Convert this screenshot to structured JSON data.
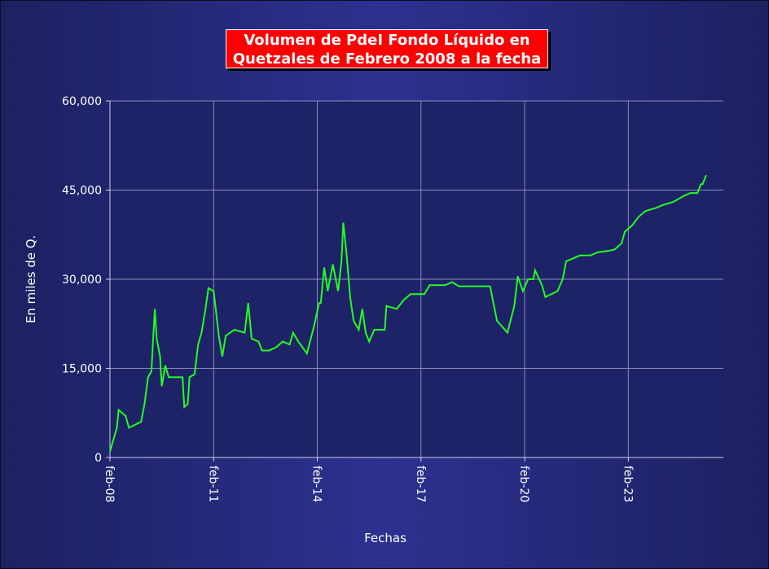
{
  "chart_data": {
    "type": "line",
    "title_line1": "Volumen de PdeI Fondo Líquido en",
    "title_line2": "Quetzales de Febrero 2008 a la fecha",
    "xlabel": "Fechas",
    "ylabel": "En miles de Q.",
    "ylim": [
      0,
      60000
    ],
    "xlim": [
      8,
      25.75
    ],
    "grid": true,
    "yticks": [
      {
        "value": 0,
        "label": "0"
      },
      {
        "value": 15000,
        "label": "15,000"
      },
      {
        "value": 30000,
        "label": "30,000"
      },
      {
        "value": 45000,
        "label": "45,000"
      },
      {
        "value": 60000,
        "label": "60,000"
      }
    ],
    "xticks": [
      {
        "value": 8,
        "label": "feb-08"
      },
      {
        "value": 11,
        "label": "feb-11"
      },
      {
        "value": 14,
        "label": "feb-14"
      },
      {
        "value": 17,
        "label": "feb-17"
      },
      {
        "value": 20,
        "label": "feb-20"
      },
      {
        "value": 23,
        "label": "feb-23"
      }
    ],
    "colors": {
      "line": "#22ff22",
      "plot_bg": "#1e2266",
      "title_bg": "#ff0000",
      "grid": "#8c8cbc"
    },
    "series": [
      {
        "values": [
          [
            8.0,
            1000
          ],
          [
            8.1,
            3000
          ],
          [
            8.2,
            5000
          ],
          [
            8.25,
            8000
          ],
          [
            8.45,
            7000
          ],
          [
            8.55,
            5000
          ],
          [
            8.9,
            6000
          ],
          [
            9.0,
            9000
          ],
          [
            9.1,
            13500
          ],
          [
            9.2,
            14500
          ],
          [
            9.25,
            20000
          ],
          [
            9.3,
            25000
          ],
          [
            9.35,
            20000
          ],
          [
            9.45,
            17000
          ],
          [
            9.5,
            12000
          ],
          [
            9.6,
            15500
          ],
          [
            9.7,
            13500
          ],
          [
            10.1,
            13500
          ],
          [
            10.15,
            8500
          ],
          [
            10.25,
            9000
          ],
          [
            10.3,
            13500
          ],
          [
            10.45,
            14000
          ],
          [
            10.55,
            19000
          ],
          [
            10.65,
            21000
          ],
          [
            10.75,
            24500
          ],
          [
            10.85,
            28500
          ],
          [
            11.0,
            28000
          ],
          [
            11.15,
            20500
          ],
          [
            11.25,
            17000
          ],
          [
            11.35,
            20500
          ],
          [
            11.6,
            21500
          ],
          [
            11.9,
            21000
          ],
          [
            12.0,
            26000
          ],
          [
            12.1,
            20000
          ],
          [
            12.3,
            19500
          ],
          [
            12.4,
            18000
          ],
          [
            12.6,
            18000
          ],
          [
            12.8,
            18500
          ],
          [
            13.0,
            19500
          ],
          [
            13.2,
            19000
          ],
          [
            13.3,
            21000
          ],
          [
            13.45,
            19500
          ],
          [
            13.7,
            17500
          ],
          [
            13.9,
            22000
          ],
          [
            14.05,
            26000
          ],
          [
            14.1,
            26000
          ],
          [
            14.2,
            32000
          ],
          [
            14.3,
            28000
          ],
          [
            14.45,
            32500
          ],
          [
            14.6,
            28000
          ],
          [
            14.7,
            33000
          ],
          [
            14.75,
            39500
          ],
          [
            14.85,
            34000
          ],
          [
            14.95,
            27000
          ],
          [
            15.05,
            23000
          ],
          [
            15.2,
            21500
          ],
          [
            15.3,
            25000
          ],
          [
            15.4,
            21000
          ],
          [
            15.5,
            19500
          ],
          [
            15.65,
            21500
          ],
          [
            15.95,
            21500
          ],
          [
            16.0,
            25500
          ],
          [
            16.3,
            25000
          ],
          [
            16.5,
            26500
          ],
          [
            16.7,
            27500
          ],
          [
            17.1,
            27500
          ],
          [
            17.2,
            28500
          ],
          [
            17.25,
            29000
          ],
          [
            17.7,
            29000
          ],
          [
            17.9,
            29500
          ],
          [
            18.1,
            28800
          ],
          [
            19.0,
            28800
          ],
          [
            19.2,
            23000
          ],
          [
            19.5,
            21000
          ],
          [
            19.7,
            25500
          ],
          [
            19.8,
            30500
          ],
          [
            19.95,
            28000
          ],
          [
            20.1,
            30000
          ],
          [
            20.25,
            30000
          ],
          [
            20.3,
            31500
          ],
          [
            20.5,
            29000
          ],
          [
            20.6,
            27000
          ],
          [
            20.95,
            28000
          ],
          [
            21.1,
            30000
          ],
          [
            21.2,
            33000
          ],
          [
            21.4,
            33500
          ],
          [
            21.6,
            34000
          ],
          [
            21.9,
            34000
          ],
          [
            22.1,
            34500
          ],
          [
            22.45,
            34800
          ],
          [
            22.6,
            35000
          ],
          [
            22.8,
            36000
          ],
          [
            22.9,
            38000
          ],
          [
            23.1,
            39000
          ],
          [
            23.3,
            40500
          ],
          [
            23.5,
            41500
          ],
          [
            23.8,
            42000
          ],
          [
            24.0,
            42500
          ],
          [
            24.3,
            43000
          ],
          [
            24.6,
            44000
          ],
          [
            24.8,
            44500
          ],
          [
            25.0,
            44500
          ],
          [
            25.1,
            46000
          ],
          [
            25.15,
            46000
          ],
          [
            25.25,
            47500
          ]
        ]
      }
    ]
  }
}
